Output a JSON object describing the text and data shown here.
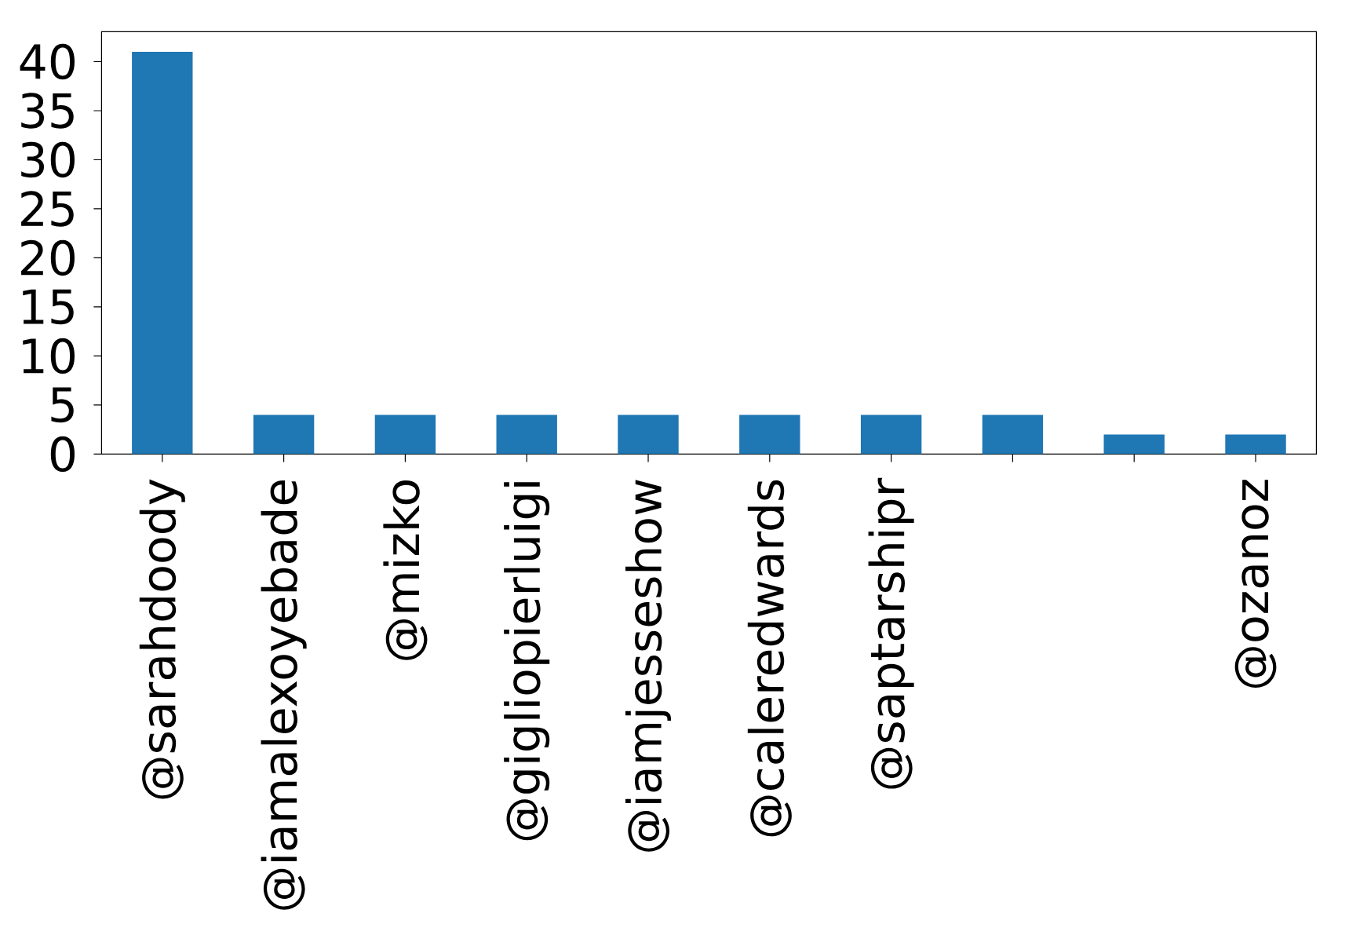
{
  "chart_data": {
    "type": "bar",
    "categories": [
      "@sarahdoody",
      "@iamalexoyebade",
      "@mizko",
      "@gigliopierluigi",
      "@iamjesseshow",
      "@caleredwards",
      "@saptarshipr",
      null,
      null,
      "@ozanoz"
    ],
    "values": [
      41,
      4,
      4,
      4,
      4,
      4,
      4,
      4,
      2,
      2
    ],
    "color": "#1f77b4",
    "ylim": [
      0,
      43.05
    ],
    "yticks": [
      0,
      5,
      10,
      15,
      20,
      25,
      30,
      35,
      40
    ]
  }
}
